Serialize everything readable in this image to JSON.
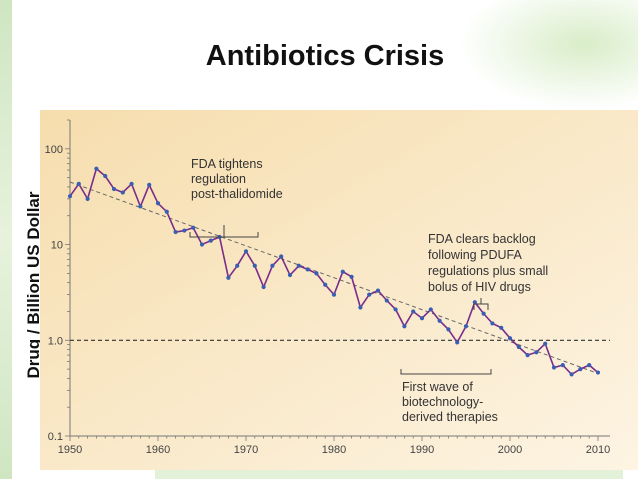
{
  "slide": {
    "title": "Antibiotics Crisis"
  },
  "chart_data": {
    "type": "line",
    "title": "Antibiotics Crisis",
    "xlabel": "",
    "ylabel": "Drug / Billion US Dollar",
    "yscale": "log",
    "xlim": [
      1950,
      2012
    ],
    "ylim": [
      0.1,
      200
    ],
    "xticks": [
      "1950",
      "1960",
      "1970",
      "1980",
      "1990",
      "2000",
      "2010"
    ],
    "yticks": [
      "0.1",
      "1.0",
      "10",
      "100"
    ],
    "reference_line": {
      "y": 1.0,
      "style": "dashed"
    },
    "trend_line": {
      "from": [
        1950,
        45
      ],
      "to": [
        2010,
        0.45
      ],
      "style": "dashed"
    },
    "series": [
      {
        "name": "",
        "color": "#7a2c8a",
        "points": [
          [
            1950,
            32
          ],
          [
            1951,
            43
          ],
          [
            1952,
            30
          ],
          [
            1953,
            62
          ],
          [
            1954,
            52
          ],
          [
            1955,
            38
          ],
          [
            1956,
            35
          ],
          [
            1957,
            43
          ],
          [
            1958,
            25
          ],
          [
            1959,
            42
          ],
          [
            1960,
            27
          ],
          [
            1961,
            22
          ],
          [
            1962,
            13.5
          ],
          [
            1963,
            14
          ],
          [
            1964,
            15
          ],
          [
            1965,
            10
          ],
          [
            1966,
            11
          ],
          [
            1967,
            12
          ],
          [
            1968,
            4.5
          ],
          [
            1969,
            6
          ],
          [
            1970,
            8.5
          ],
          [
            1971,
            6
          ],
          [
            1972,
            3.6
          ],
          [
            1973,
            6
          ],
          [
            1974,
            7.5
          ],
          [
            1975,
            4.8
          ],
          [
            1976,
            6
          ],
          [
            1977,
            5.5
          ],
          [
            1978,
            5
          ],
          [
            1979,
            3.8
          ],
          [
            1980,
            3
          ],
          [
            1981,
            5.2
          ],
          [
            1982,
            4.6
          ],
          [
            1983,
            2.2
          ],
          [
            1984,
            3
          ],
          [
            1985,
            3.3
          ],
          [
            1986,
            2.6
          ],
          [
            1987,
            2.1
          ],
          [
            1988,
            1.4
          ],
          [
            1989,
            2
          ],
          [
            1990,
            1.7
          ],
          [
            1991,
            2.1
          ],
          [
            1992,
            1.6
          ],
          [
            1993,
            1.3
          ],
          [
            1994,
            0.95
          ],
          [
            1995,
            1.4
          ],
          [
            1996,
            2.5
          ],
          [
            1997,
            1.9
          ],
          [
            1998,
            1.5
          ],
          [
            1999,
            1.35
          ],
          [
            2000,
            1.05
          ],
          [
            2001,
            0.85
          ],
          [
            2002,
            0.7
          ],
          [
            2003,
            0.75
          ],
          [
            2004,
            0.92
          ],
          [
            2005,
            0.52
          ],
          [
            2006,
            0.55
          ],
          [
            2007,
            0.44
          ],
          [
            2008,
            0.5
          ],
          [
            2009,
            0.55
          ],
          [
            2010,
            0.46
          ]
        ]
      }
    ],
    "annotations": [
      {
        "lines": [
          "FDA tightens",
          "regulation",
          "post-thalidomide"
        ]
      },
      {
        "lines": [
          "FDA clears backlog",
          "following PDUFA",
          "regulations plus small",
          "bolus of HIV drugs"
        ]
      },
      {
        "lines": [
          "First wave of",
          "biotechnology-",
          "derived therapies"
        ]
      }
    ],
    "colors": {
      "background_start": "#f6ddad",
      "background_end": "#fdf4e3",
      "line": "#7a2c8a",
      "markers": "#3a5fb0"
    }
  }
}
